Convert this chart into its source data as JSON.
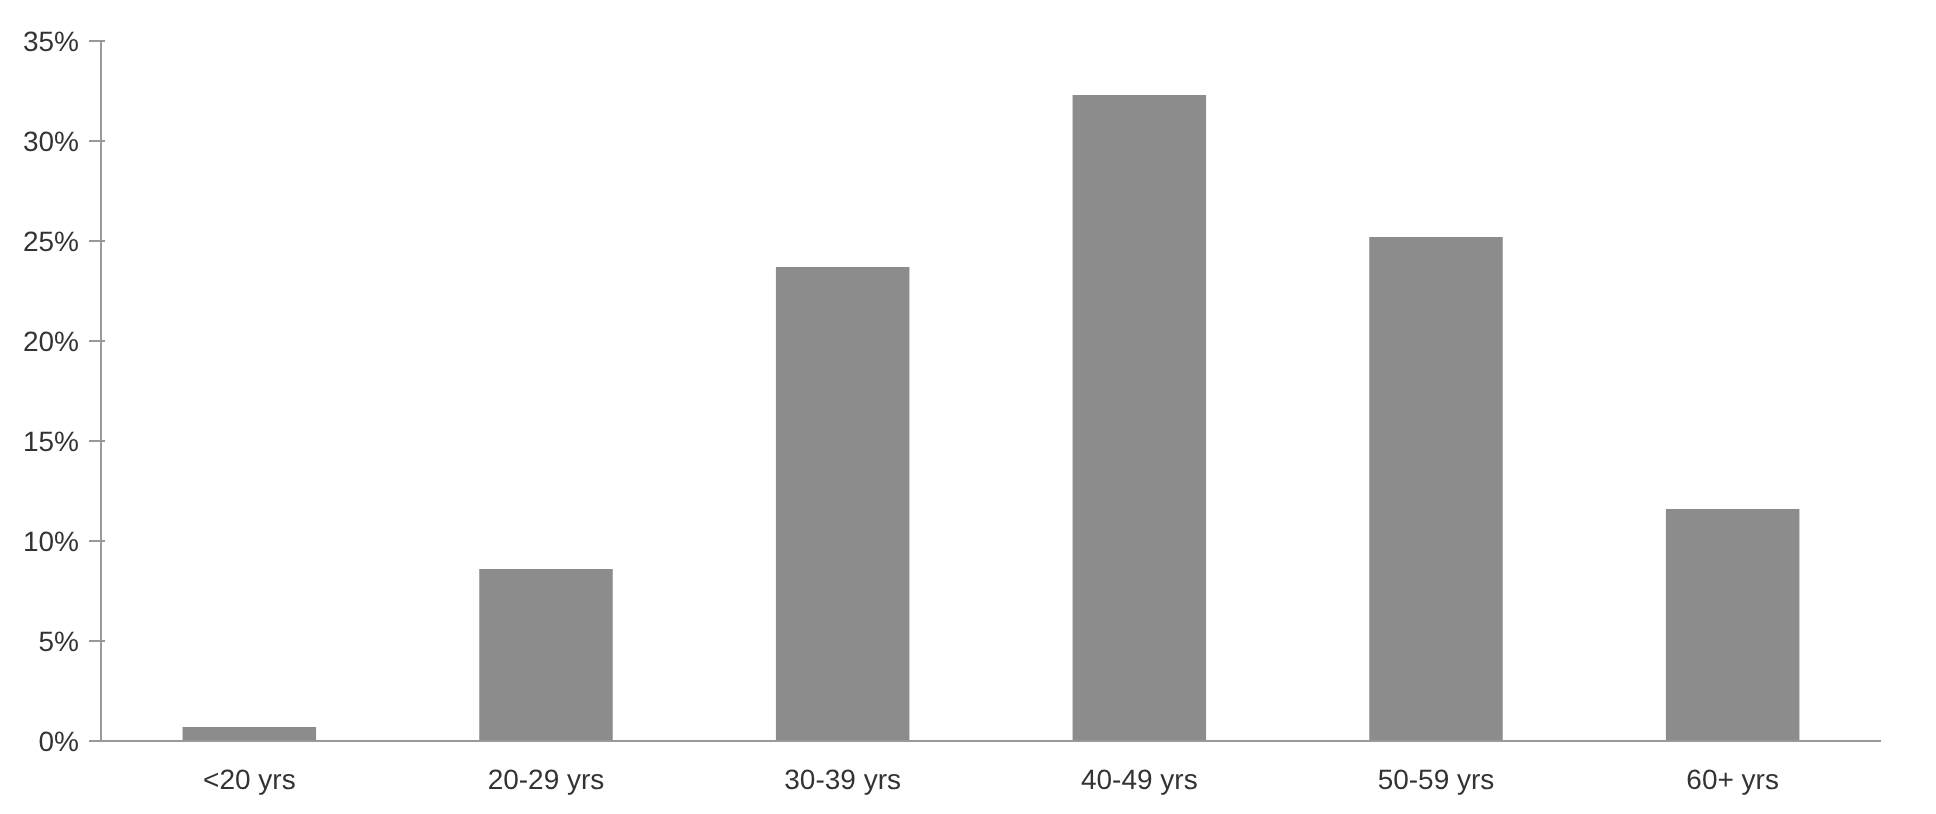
{
  "chart_data": {
    "type": "bar",
    "categories": [
      "<20 yrs",
      "20-29 yrs",
      "30-39 yrs",
      "40-49 yrs",
      "50-59 yrs",
      "60+ yrs"
    ],
    "values": [
      0.7,
      8.6,
      23.7,
      32.3,
      25.2,
      11.6
    ],
    "color": "#8c8c8c",
    "ylim": [
      0,
      35
    ],
    "yticks": [
      {
        "value": 0,
        "label": "0%"
      },
      {
        "value": 5,
        "label": "5%"
      },
      {
        "value": 10,
        "label": "10%"
      },
      {
        "value": 15,
        "label": "15%"
      },
      {
        "value": 20,
        "label": "20%"
      },
      {
        "value": 25,
        "label": "25%"
      },
      {
        "value": 30,
        "label": "30%"
      },
      {
        "value": 35,
        "label": "35%"
      }
    ],
    "grid": false
  }
}
